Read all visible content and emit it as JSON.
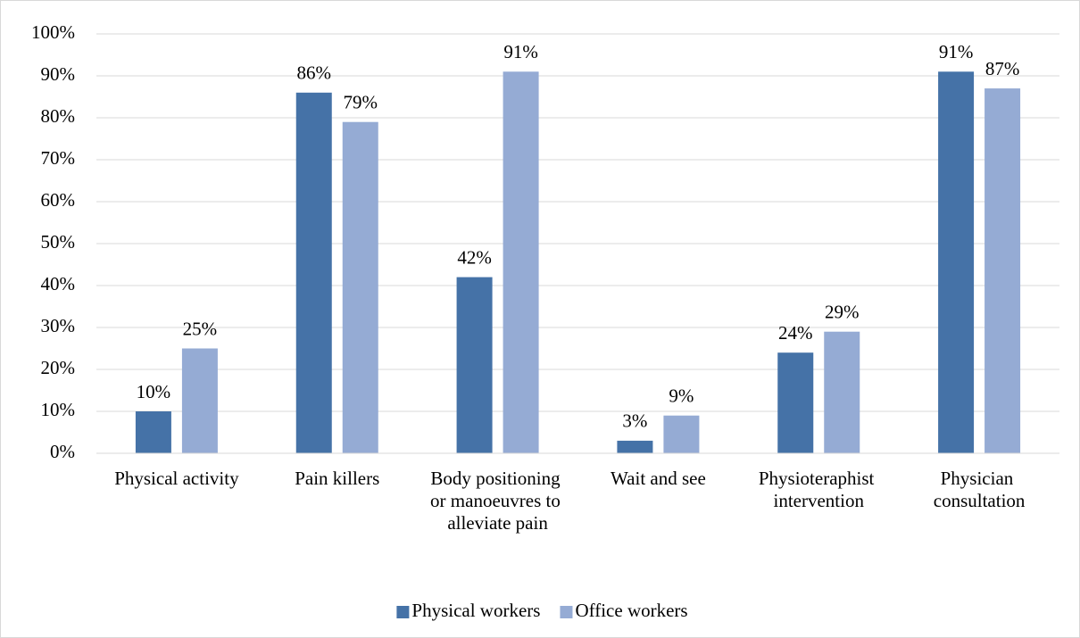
{
  "chart_data": {
    "type": "bar",
    "categories": [
      "Physical activity",
      "Pain killers",
      "Body positioning or manoeuvres to alleviate pain",
      "Wait and see",
      "Physioteraphist intervention",
      "Physician consultation"
    ],
    "series": [
      {
        "name": "Physical workers",
        "color": "#4572a7",
        "values": [
          10,
          86,
          42,
          3,
          24,
          91
        ],
        "value_labels": [
          "10%",
          "86%",
          "42%",
          "3%",
          "24%",
          "91%"
        ]
      },
      {
        "name": "Office workers",
        "color": "#95abd4",
        "values": [
          25,
          79,
          91,
          9,
          29,
          87
        ],
        "value_labels": [
          "25%",
          "79%",
          "91%",
          "9%",
          "29%",
          "87%"
        ]
      }
    ],
    "ylim": [
      0,
      100
    ],
    "yticks": [
      {
        "value": 0,
        "label": "0%"
      },
      {
        "value": 10,
        "label": "10%"
      },
      {
        "value": 20,
        "label": "20%"
      },
      {
        "value": 30,
        "label": "30%"
      },
      {
        "value": 40,
        "label": "40%"
      },
      {
        "value": 50,
        "label": "50%"
      },
      {
        "value": 60,
        "label": "60%"
      },
      {
        "value": 70,
        "label": "70%"
      },
      {
        "value": 80,
        "label": "80%"
      },
      {
        "value": 90,
        "label": "90%"
      },
      {
        "value": 100,
        "label": "100%"
      }
    ],
    "grid": true,
    "legend": "bottom"
  }
}
